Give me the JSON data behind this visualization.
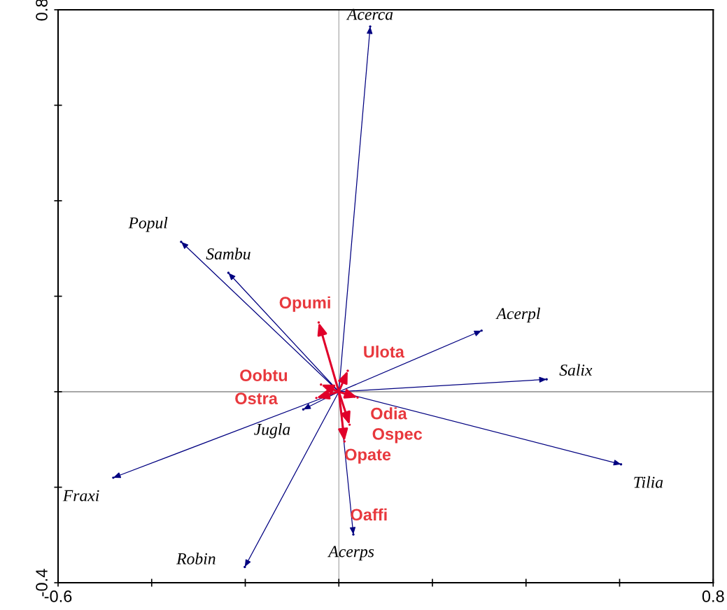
{
  "chart_data": {
    "type": "scatter",
    "xlim": [
      -0.6,
      0.8
    ],
    "ylim": [
      -0.4,
      0.8
    ],
    "xticks": [
      -0.6,
      {
        "value": -0.4,
        "label": null
      },
      {
        "value": -0.2,
        "label": null
      },
      {
        "value": 0,
        "label": null
      },
      {
        "value": 0.2,
        "label": null
      },
      {
        "value": 0.4,
        "label": null
      },
      {
        "value": 0.6,
        "label": null
      },
      0.8
    ],
    "yticks": [
      -0.4,
      {
        "value": -0.2,
        "label": null
      },
      {
        "value": 0,
        "label": null
      },
      {
        "value": 0.2,
        "label": null
      },
      {
        "value": 0.4,
        "label": null
      },
      {
        "value": 0.6,
        "label": null
      },
      0.8
    ],
    "grid": false,
    "legend": false,
    "series": [
      {
        "type": "scatter",
        "color": "#000080",
        "x": [
          0.067,
          -0.337,
          -0.236,
          0.305,
          0.444,
          0.603,
          -0.482,
          -0.201,
          0.031,
          -0.076
        ],
        "values": [
          0.765,
          0.314,
          0.249,
          0.128,
          0.026,
          -0.152,
          -0.18,
          -0.367,
          -0.299,
          -0.037
        ]
      },
      {
        "type": "scatter",
        "color": "#e0002a",
        "x": [
          -0.043,
          0.019,
          -0.038,
          -0.048,
          0.04,
          0.023,
          0.012
        ],
        "values": [
          0.145,
          0.044,
          0.015,
          -0.013,
          -0.012,
          -0.069,
          -0.104
        ]
      }
    ],
    "ref_lines": [
      {
        "axis": "x",
        "value": 0,
        "color": "#808080"
      },
      {
        "axis": "y",
        "value": 0,
        "color": "#505050"
      }
    ],
    "annotations": [
      {
        "text": "Acerca",
        "x": 0.067,
        "y": 0.765
      },
      {
        "text": "Popul",
        "x": -0.337,
        "y": 0.314
      },
      {
        "text": "Sambu",
        "x": -0.236,
        "y": 0.249
      },
      {
        "text": "Acerpl",
        "x": 0.305,
        "y": 0.128
      },
      {
        "text": "Salix",
        "x": 0.444,
        "y": 0.026
      },
      {
        "text": "Tilia",
        "x": 0.603,
        "y": -0.152
      },
      {
        "text": "Fraxi",
        "x": -0.482,
        "y": -0.18
      },
      {
        "text": "Robin",
        "x": -0.201,
        "y": -0.367
      },
      {
        "text": "Acerps",
        "x": 0.031,
        "y": -0.299
      },
      {
        "text": "Jugla",
        "x": -0.076,
        "y": -0.037
      },
      {
        "text": "Opumi",
        "x": -0.043,
        "y": 0.145
      },
      {
        "text": "Ulota",
        "x": 0.019,
        "y": 0.044
      },
      {
        "text": "Oobtu",
        "x": -0.038,
        "y": 0.015
      },
      {
        "text": "Ostra",
        "x": -0.048,
        "y": -0.013
      },
      {
        "text": "Odia",
        "x": 0.04,
        "y": -0.012
      },
      {
        "text": "Ospec",
        "x": 0.023,
        "y": -0.069
      },
      {
        "text": "Opate",
        "x": 0.012,
        "y": -0.104
      },
      "Oaffi"
    ]
  }
}
